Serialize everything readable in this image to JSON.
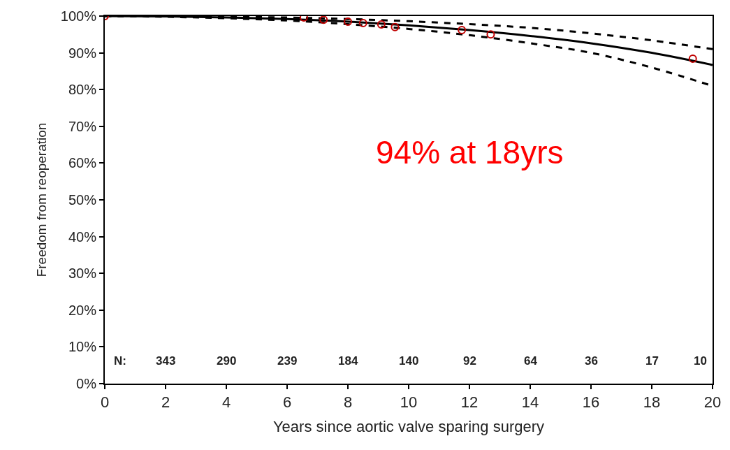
{
  "chart_data": {
    "type": "line",
    "xlabel": "Years since aortic valve sparing surgery",
    "ylabel": "Freedom from reoperation",
    "xlim": [
      0,
      20
    ],
    "xticks": [
      0,
      2,
      4,
      6,
      8,
      10,
      12,
      14,
      16,
      18,
      20
    ],
    "ylim": [
      0,
      100
    ],
    "yticks": [
      {
        "value": 0,
        "label": "0%"
      },
      {
        "value": 10,
        "label": "10%"
      },
      {
        "value": 20,
        "label": "20%"
      },
      {
        "value": 30,
        "label": "30%"
      },
      {
        "value": 40,
        "label": "40%"
      },
      {
        "value": 50,
        "label": "50%"
      },
      {
        "value": 60,
        "label": "60%"
      },
      {
        "value": 70,
        "label": "70%"
      },
      {
        "value": 80,
        "label": "80%"
      },
      {
        "value": 90,
        "label": "90%"
      },
      {
        "value": 100,
        "label": "100%"
      }
    ],
    "series": [
      {
        "color": "#000000",
        "line_style": "solid",
        "marker": "none",
        "x": [
          0,
          2,
          4,
          6,
          8,
          10,
          12,
          14,
          16,
          18,
          20
        ],
        "values": [
          100,
          99.9,
          99.6,
          99.2,
          98.5,
          97.5,
          96.2,
          94.6,
          92.6,
          90.0,
          86.7
        ]
      },
      {
        "color": "#000000",
        "line_style": "dashed",
        "marker": "none",
        "x": [
          0,
          2,
          4,
          6,
          8,
          10,
          12,
          14,
          16,
          18,
          20
        ],
        "values": [
          100,
          99.9,
          99.8,
          99.6,
          99.2,
          98.6,
          97.8,
          96.8,
          95.3,
          93.4,
          91.0
        ]
      },
      {
        "color": "#000000",
        "line_style": "dashed",
        "marker": "none",
        "x": [
          0,
          2,
          4,
          6,
          8,
          10,
          12,
          14,
          16,
          18,
          20
        ],
        "values": [
          100,
          99.8,
          99.4,
          98.8,
          97.8,
          96.5,
          94.8,
          92.6,
          90.0,
          86.0,
          81.0
        ]
      },
      {
        "type": "scatter",
        "color": "#c00000",
        "marker": "circle",
        "x": [
          0,
          6.55,
          7.2,
          8.0,
          8.5,
          9.1,
          9.55,
          11.75,
          12.7,
          19.35
        ],
        "values": [
          100,
          99.6,
          99.0,
          98.5,
          98.1,
          97.7,
          97.0,
          96.2,
          95.0,
          88.4
        ]
      }
    ],
    "annotations": [
      "94% at 18yrs",
      "N:",
      "343",
      "290",
      "239",
      "184",
      "140",
      "92",
      "64",
      "36",
      "17",
      "10"
    ]
  }
}
